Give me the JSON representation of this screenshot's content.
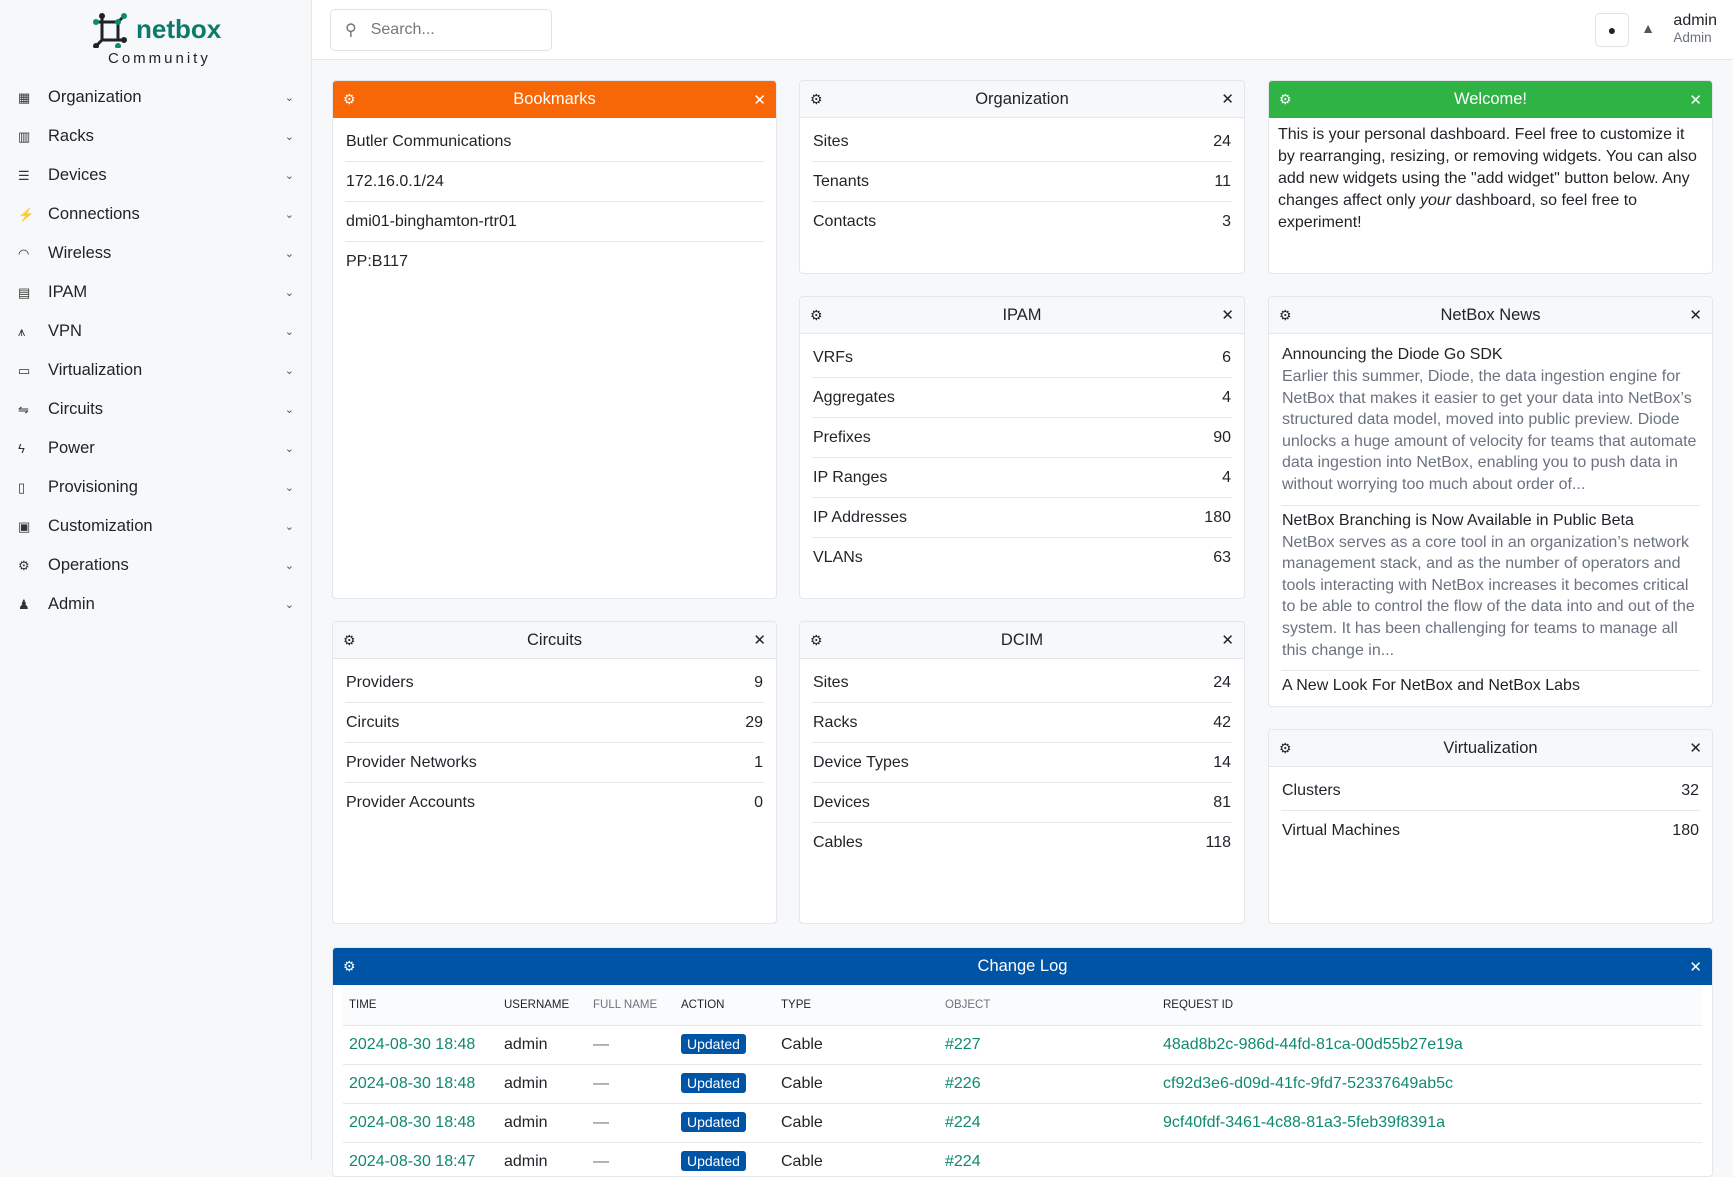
{
  "brand": {
    "name": "netbox",
    "edition": "Community",
    "color": "#0f7a6b"
  },
  "sidebar": {
    "items": [
      {
        "label": "Organization",
        "icon": "building-icon"
      },
      {
        "label": "Racks",
        "icon": "rack-icon"
      },
      {
        "label": "Devices",
        "icon": "server-icon"
      },
      {
        "label": "Connections",
        "icon": "plug-icon"
      },
      {
        "label": "Wireless",
        "icon": "wifi-icon"
      },
      {
        "label": "IPAM",
        "icon": "counter-icon"
      },
      {
        "label": "VPN",
        "icon": "vpn-icon"
      },
      {
        "label": "Virtualization",
        "icon": "monitor-icon"
      },
      {
        "label": "Circuits",
        "icon": "circuit-icon"
      },
      {
        "label": "Power",
        "icon": "flash-icon"
      },
      {
        "label": "Provisioning",
        "icon": "file-icon"
      },
      {
        "label": "Customization",
        "icon": "toolbox-icon"
      },
      {
        "label": "Operations",
        "icon": "cogs-icon"
      },
      {
        "label": "Admin",
        "icon": "users-icon"
      }
    ]
  },
  "header": {
    "search_placeholder": "Search...",
    "user": "admin",
    "role": "Admin"
  },
  "widgets": {
    "bookmarks": {
      "title": "Bookmarks",
      "color": "#f76707",
      "items": [
        "Butler Communications",
        "172.16.0.1/24",
        "dmi01-binghamton-rtr01",
        "PP:B117"
      ]
    },
    "organization": {
      "title": "Organization",
      "rows": [
        [
          "Sites",
          "24"
        ],
        [
          "Tenants",
          "11"
        ],
        [
          "Contacts",
          "3"
        ]
      ]
    },
    "welcome": {
      "title": "Welcome!",
      "color": "#2fb344",
      "text_before": "This is your personal dashboard. Feel free to customize it by rearranging, resizing, or removing widgets. You can also add new widgets using the \"add widget\" button below. Any changes affect only ",
      "text_em": "your",
      "text_after": " dashboard, so feel free to experiment!"
    },
    "ipam": {
      "title": "IPAM",
      "rows": [
        [
          "VRFs",
          "6"
        ],
        [
          "Aggregates",
          "4"
        ],
        [
          "Prefixes",
          "90"
        ],
        [
          "IP Ranges",
          "4"
        ],
        [
          "IP Addresses",
          "180"
        ],
        [
          "VLANs",
          "63"
        ]
      ]
    },
    "news": {
      "title": "NetBox News",
      "items": [
        {
          "title": "Announcing the Diode Go SDK",
          "desc": "Earlier this summer, Diode, the data ingestion engine for NetBox that makes it easier to get your data into NetBox’s structured data model, moved into public preview. Diode unlocks a huge amount of velocity for teams that automate data ingestion into NetBox, enabling you to push data in without worrying too much about order of..."
        },
        {
          "title": "NetBox Branching is Now Available in Public Beta",
          "desc": "NetBox serves as a core tool in an organization’s network management stack, and as the number of operators and tools interacting with NetBox increases it becomes critical to be able to control the flow of the data into and out of the system. It has been challenging for teams to manage all this change in..."
        },
        {
          "title": "A New Look For NetBox and NetBox Labs",
          "desc": ""
        }
      ]
    },
    "circuits": {
      "title": "Circuits",
      "rows": [
        [
          "Providers",
          "9"
        ],
        [
          "Circuits",
          "29"
        ],
        [
          "Provider Networks",
          "1"
        ],
        [
          "Provider Accounts",
          "0"
        ]
      ]
    },
    "dcim": {
      "title": "DCIM",
      "rows": [
        [
          "Sites",
          "24"
        ],
        [
          "Racks",
          "42"
        ],
        [
          "Device Types",
          "14"
        ],
        [
          "Devices",
          "81"
        ],
        [
          "Cables",
          "118"
        ]
      ]
    },
    "virtualization": {
      "title": "Virtualization",
      "rows": [
        [
          "Clusters",
          "32"
        ],
        [
          "Virtual Machines",
          "180"
        ]
      ]
    },
    "changelog": {
      "title": "Change Log",
      "color": "#0054a6",
      "columns": [
        "TIME",
        "USERNAME",
        "FULL NAME",
        "ACTION",
        "TYPE",
        "OBJECT",
        "REQUEST ID"
      ],
      "rows": [
        [
          "2024-08-30 18:48",
          "admin",
          "—",
          "Updated",
          "Cable",
          "#227",
          "48ad8b2c-986d-44fd-81ca-00d55b27e19a"
        ],
        [
          "2024-08-30 18:48",
          "admin",
          "—",
          "Updated",
          "Cable",
          "#226",
          "cf92d3e6-d09d-41fc-9fd7-52337649ab5c"
        ],
        [
          "2024-08-30 18:48",
          "admin",
          "—",
          "Updated",
          "Cable",
          "#224",
          "9cf40fdf-3461-4c88-81a3-5feb39f8391a"
        ],
        [
          "2024-08-30 18:47",
          "admin",
          "—",
          "Updated",
          "Cable",
          "#224",
          ""
        ]
      ]
    }
  }
}
